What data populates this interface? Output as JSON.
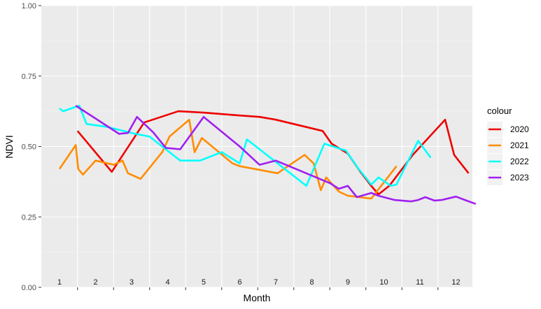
{
  "chart_data": {
    "type": "line",
    "xlabel": "Month",
    "ylabel": "NDVI",
    "xlim": [
      1,
      12.5
    ],
    "ylim": [
      0,
      1
    ],
    "y_ticks": [
      "0.00",
      "0.25",
      "0.50",
      "0.75",
      "1.00"
    ],
    "month_labels": [
      "1",
      "2",
      "3",
      "4",
      "5",
      "6",
      "7",
      "8",
      "9",
      "10",
      "11",
      "12"
    ],
    "grid": true,
    "legend": {
      "title": "colour",
      "position": "right"
    },
    "series": [
      {
        "name": "2020",
        "color": "#ee0000",
        "x": [
          1.5,
          2.45,
          3.35,
          4.3,
          5.0,
          6.0,
          6.55,
          7.0,
          8.3,
          8.55,
          9.0,
          9.35,
          9.65,
          9.85,
          10.15,
          10.8,
          11.7,
          11.95,
          12.35
        ],
        "y": [
          0.555,
          0.41,
          0.585,
          0.625,
          0.62,
          0.61,
          0.605,
          0.595,
          0.555,
          0.51,
          0.475,
          0.41,
          0.36,
          0.33,
          0.36,
          0.47,
          0.595,
          0.47,
          0.405
        ]
      },
      {
        "name": "2021",
        "color": "#ff8c00",
        "x": [
          1.0,
          1.45,
          1.52,
          1.65,
          2.0,
          2.5,
          2.75,
          2.9,
          3.25,
          3.85,
          4.05,
          4.6,
          4.75,
          4.95,
          5.8,
          6.0,
          7.05,
          7.8,
          8.05,
          8.25,
          8.4,
          8.75,
          9.0,
          9.65,
          10.35
        ],
        "y": [
          0.42,
          0.505,
          0.42,
          0.4,
          0.45,
          0.435,
          0.45,
          0.405,
          0.385,
          0.48,
          0.535,
          0.595,
          0.48,
          0.53,
          0.44,
          0.43,
          0.405,
          0.47,
          0.44,
          0.345,
          0.39,
          0.34,
          0.325,
          0.315,
          0.43
        ]
      },
      {
        "name": "2022",
        "color": "#00ffff",
        "x": [
          1.0,
          1.1,
          1.55,
          1.75,
          2.3,
          3.1,
          3.5,
          4.35,
          4.9,
          5.5,
          6.0,
          6.2,
          7.25,
          7.85,
          8.35,
          8.95,
          9.3,
          9.65,
          9.85,
          10.2,
          10.35,
          10.95,
          11.3
        ],
        "y": [
          0.635,
          0.625,
          0.645,
          0.58,
          0.57,
          0.545,
          0.535,
          0.45,
          0.45,
          0.48,
          0.44,
          0.525,
          0.42,
          0.36,
          0.51,
          0.485,
          0.42,
          0.365,
          0.39,
          0.36,
          0.365,
          0.52,
          0.46
        ]
      },
      {
        "name": "2023",
        "color": "#a020f0",
        "x": [
          1.45,
          2.65,
          2.9,
          3.15,
          3.6,
          3.95,
          4.35,
          5.0,
          6.0,
          6.55,
          7.0,
          8.5,
          8.75,
          9.0,
          9.25,
          9.65,
          9.85,
          10.3,
          10.75,
          10.95,
          11.15,
          11.4,
          11.6,
          12.0,
          12.25,
          12.55
        ],
        "y": [
          0.645,
          0.545,
          0.548,
          0.605,
          0.55,
          0.495,
          0.49,
          0.605,
          0.5,
          0.435,
          0.45,
          0.37,
          0.35,
          0.36,
          0.32,
          0.335,
          0.325,
          0.31,
          0.305,
          0.31,
          0.32,
          0.308,
          0.31,
          0.322,
          0.31,
          0.296
        ]
      }
    ]
  }
}
